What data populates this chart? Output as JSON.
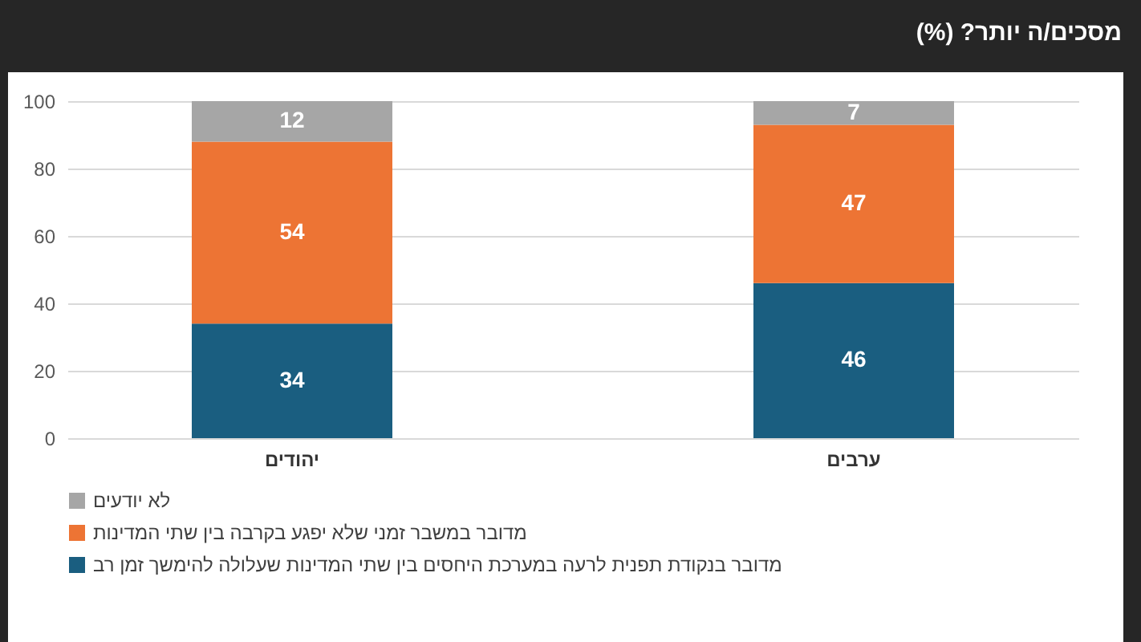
{
  "chart_data": {
    "type": "bar",
    "title": "מסכים/ה יותר? (%)",
    "categories": [
      "יהודים",
      "ערבים"
    ],
    "stacked": true,
    "series": [
      {
        "name": "מדובר בנקודת תפנית לרעה במערכת היחסים בין שתי המדינות שעלולה להימשך זמן רב",
        "color": "#1a5e80",
        "values": [
          34,
          46
        ]
      },
      {
        "name": "מדובר במשבר זמני שלא יפגע בקרבה בין שתי המדינות",
        "color": "#ed7434",
        "values": [
          54,
          47
        ]
      },
      {
        "name": "לא יודעים",
        "color": "#a6a6a6",
        "values": [
          12,
          7
        ]
      }
    ],
    "ylim": [
      0,
      100
    ],
    "yticks": [
      0,
      20,
      40,
      60,
      80,
      100
    ],
    "grid": "y",
    "legend": "bottom",
    "data_labels": true
  }
}
